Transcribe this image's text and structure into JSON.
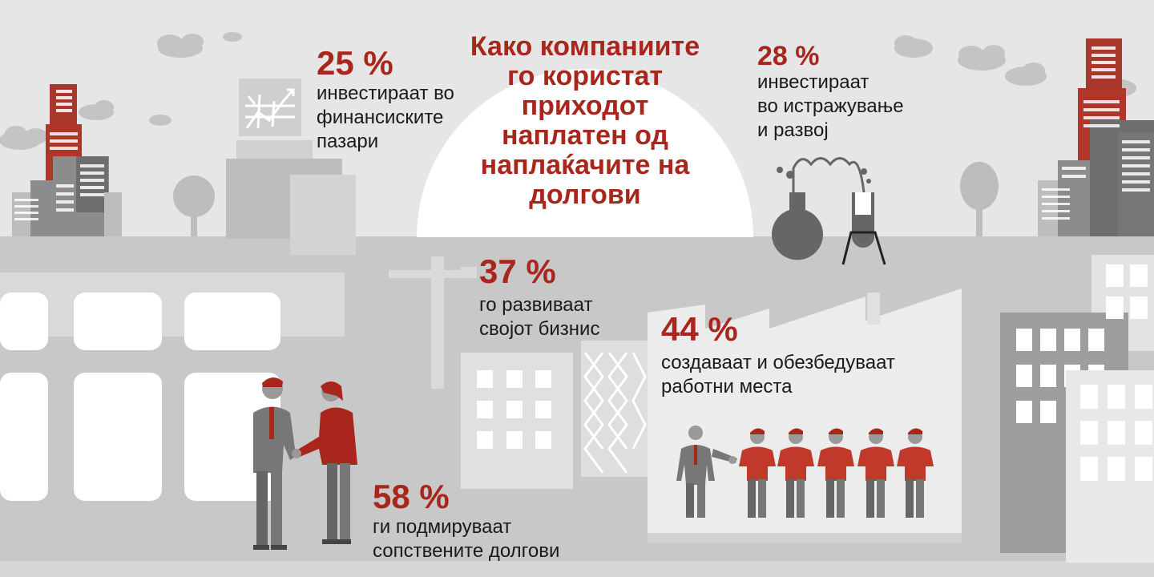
{
  "title": {
    "lines": [
      "Како компаниите",
      "го користат",
      "приходот",
      "наплатен од",
      "наплаќачите на",
      "долгови"
    ]
  },
  "stats": [
    {
      "percent": "25 %",
      "lines": [
        "инвестираат во",
        "финансиските",
        "пазари"
      ]
    },
    {
      "percent": "28 %",
      "lines": [
        "инвестираат",
        "во истражување",
        "и развој"
      ]
    },
    {
      "percent": "37 %",
      "lines": [
        "го развиваат",
        "својот бизнис"
      ]
    },
    {
      "percent": "44 %",
      "lines": [
        "создаваат и обезбедуваат",
        "работни места"
      ]
    },
    {
      "percent": "58 %",
      "lines": [
        "ги подмируваат",
        "сопствените долгови"
      ]
    }
  ],
  "colors": {
    "accent_red": "#a8261b",
    "building_red": "#b0362a",
    "dark_gray": "#666666",
    "mid_gray": "#8c8c8c",
    "light_gray": "#bdbdbd",
    "background": "#e6e6e6",
    "white": "#ffffff"
  },
  "icons": [
    "cloud-icon",
    "chart-icon",
    "crane-icon",
    "flask-icon",
    "factory-icon",
    "handshake-icon",
    "workers-icon"
  ]
}
